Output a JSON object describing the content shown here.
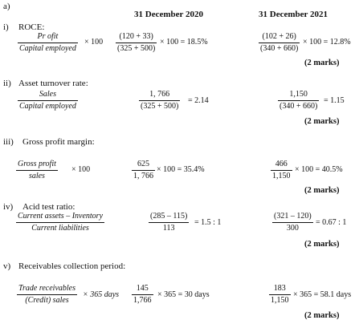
{
  "part_label": "a)",
  "headers": {
    "col2020": "31 December 2020",
    "col2021": "31 December 2021"
  },
  "sections": [
    {
      "num": "i)",
      "title": "ROCE:",
      "formula": {
        "num": "Pr ofit",
        "den": "Capital employed",
        "suffix": "× 100"
      },
      "y2020": {
        "num": "(120 + 33)",
        "den": "(325 + 500)",
        "result": "× 100 = 18.5%"
      },
      "y2021": {
        "num": "(102 + 26)",
        "den": "(340 + 660)",
        "result": "× 100 = 12.8%"
      },
      "marks": "(2 marks)"
    },
    {
      "num": "ii)",
      "title": "Asset turnover rate:",
      "formula": {
        "num": "Sales",
        "den": "Capital employed",
        "suffix": ""
      },
      "y2020": {
        "num": "1, 766",
        "den": "(325 + 500)",
        "result": "= 2.14"
      },
      "y2021": {
        "num": "1,150",
        "den": "(340 + 660)",
        "result": "= 1.15"
      },
      "marks": "(2 marks)"
    },
    {
      "num": "iii)",
      "title": "Gross profit margin:",
      "formula": {
        "num": "Gross profit",
        "den": "sales",
        "suffix": "× 100"
      },
      "y2020": {
        "num": "625",
        "den": "1, 766",
        "result": "× 100 = 35.4%"
      },
      "y2021": {
        "num": "466",
        "den": "1,150",
        "result": "× 100 = 40.5%"
      },
      "marks": "(2 marks)"
    },
    {
      "num": "iv)",
      "title": "Acid test ratio:",
      "formula": {
        "num": "Current assets – Inventory",
        "den": "Current liabilities",
        "suffix": ""
      },
      "y2020": {
        "num": "(285 – 115)",
        "den": "113",
        "result": "= 1.5 : 1"
      },
      "y2021": {
        "num": "(321 – 120)",
        "den": "300",
        "result": "= 0.67 : 1"
      },
      "marks": "(2 marks)"
    },
    {
      "num": "v)",
      "title": "Receivables collection period:",
      "formula": {
        "num": "Trade receivables",
        "den": "(Credit) sales",
        "suffix": "× 365 days"
      },
      "y2020": {
        "num": "145",
        "den": "1,766",
        "result": "× 365 = 30 days"
      },
      "y2021": {
        "num": "183",
        "den": "1,150",
        "result": "× 365 = 58.1 days"
      },
      "marks": "(2 marks)"
    }
  ]
}
